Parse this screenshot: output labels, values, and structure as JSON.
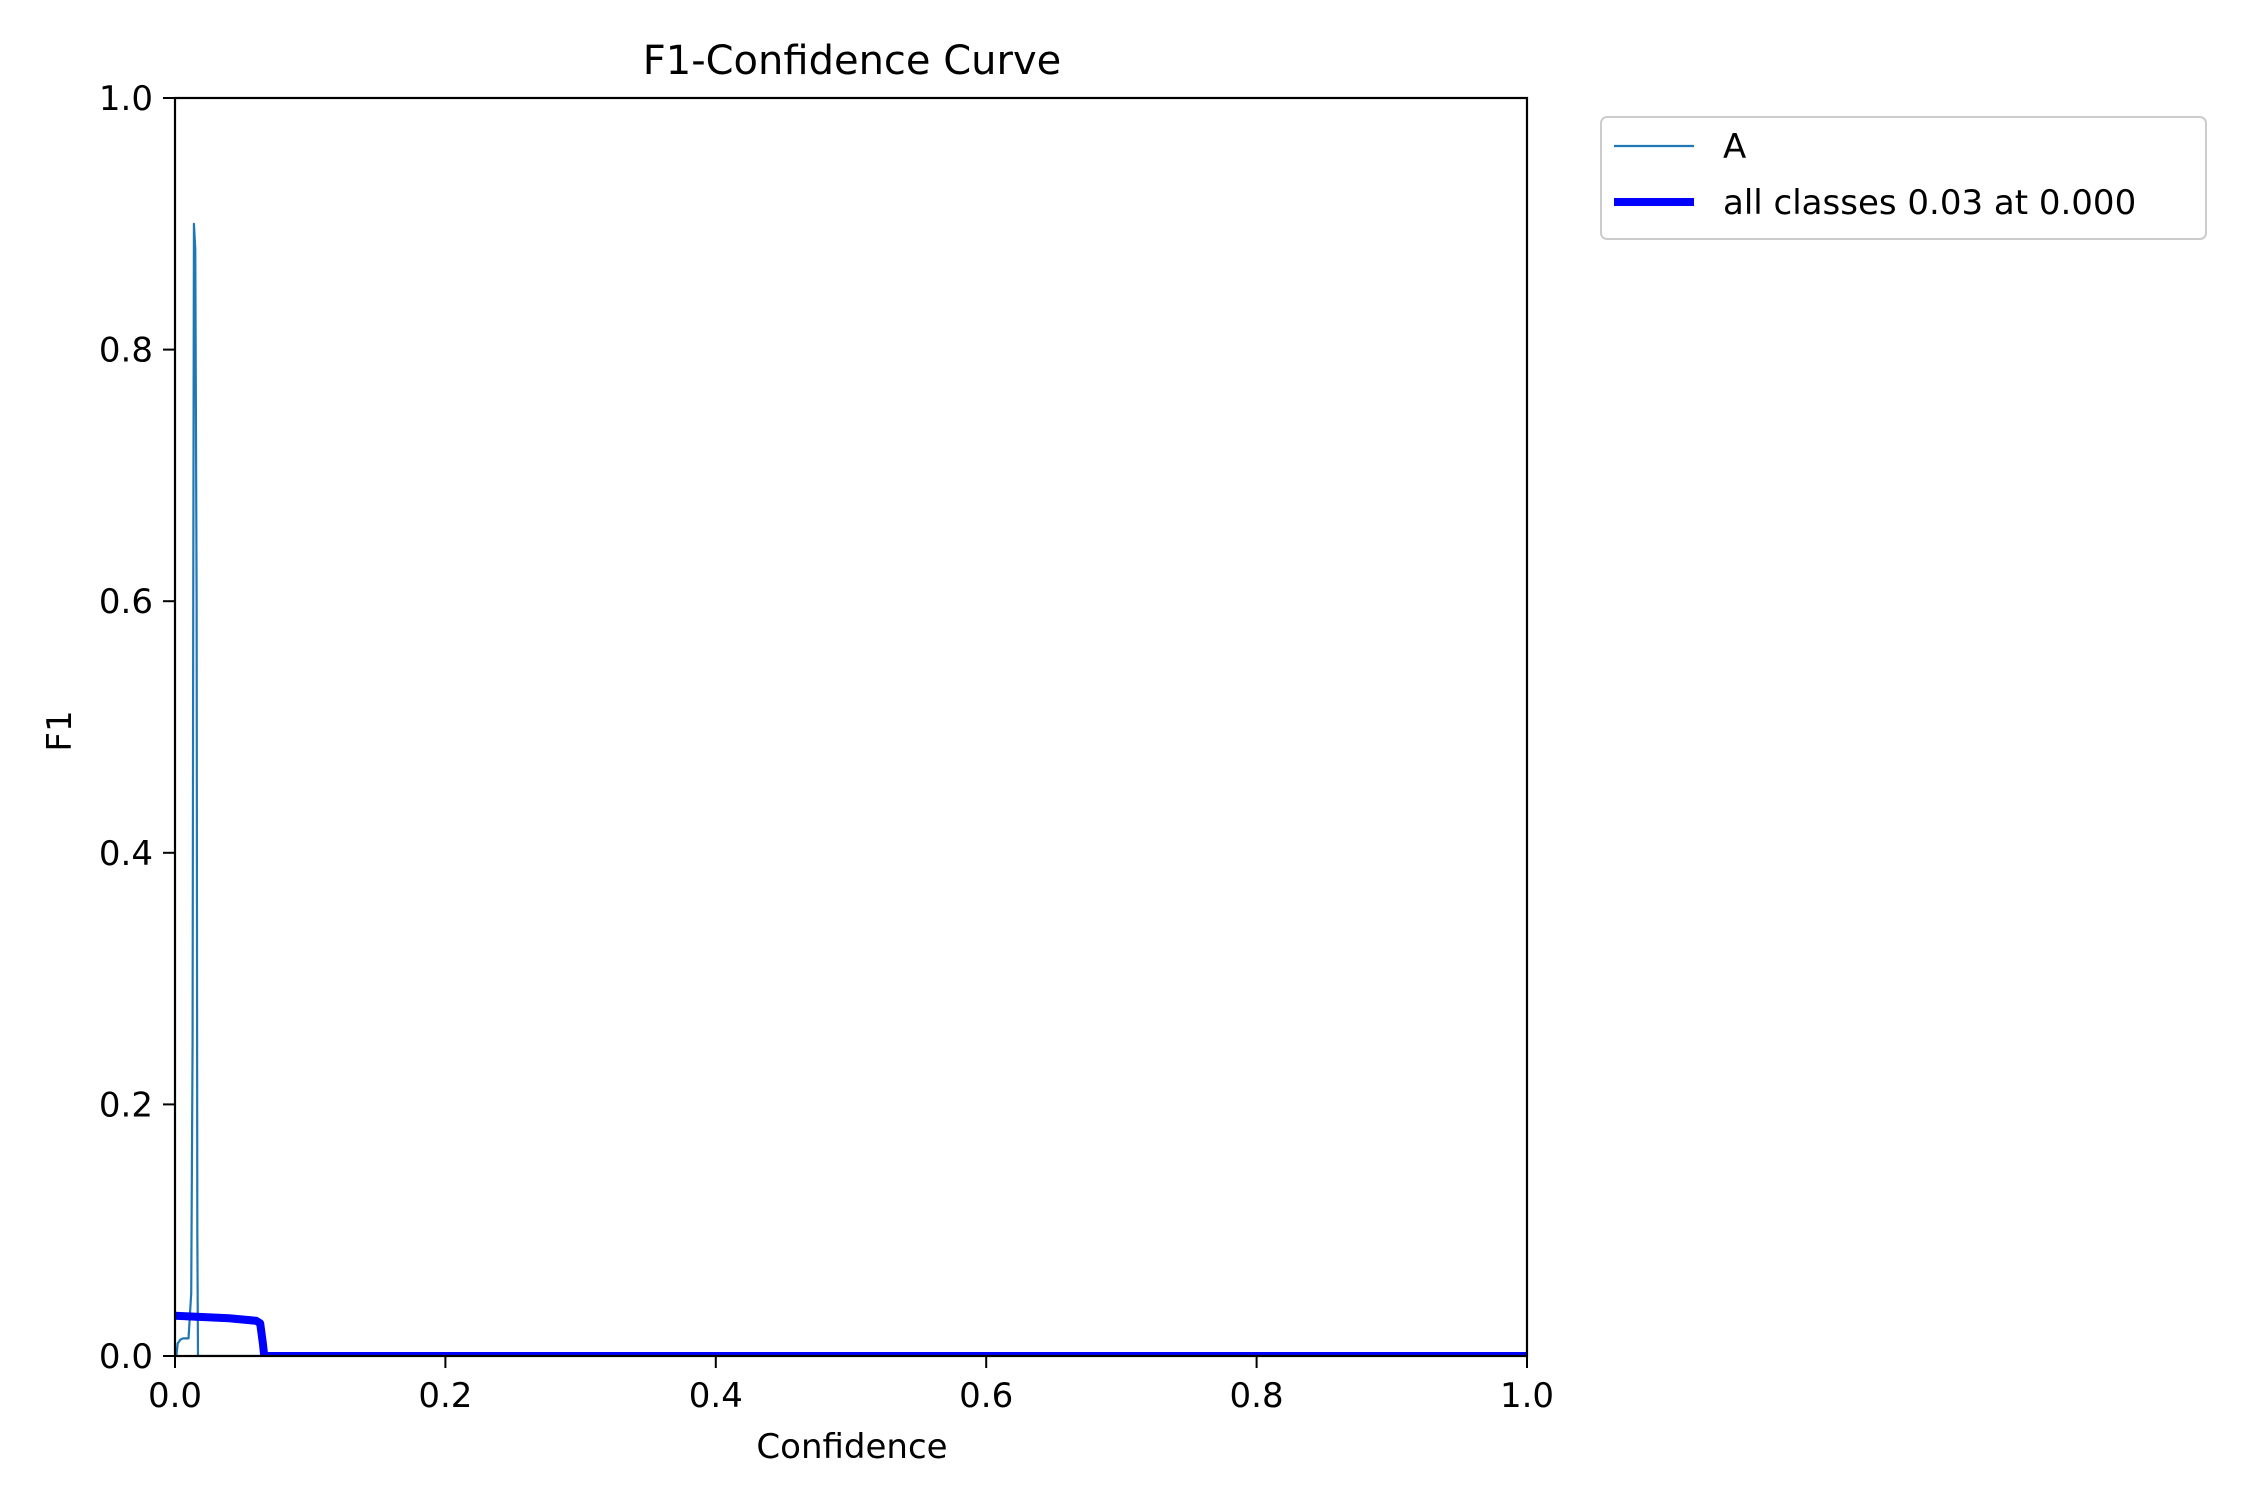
{
  "chart_data": {
    "type": "line",
    "title": "F1-Confidence Curve",
    "xlabel": "Confidence",
    "ylabel": "F1",
    "xlim": [
      0.0,
      1.0
    ],
    "ylim": [
      0.0,
      1.0
    ],
    "xticks": [
      "0.0",
      "0.2",
      "0.4",
      "0.6",
      "0.8",
      "1.0"
    ],
    "yticks": [
      "0.0",
      "0.2",
      "0.4",
      "0.6",
      "0.8",
      "1.0"
    ],
    "grid": false,
    "legend_position": "outside upper right",
    "series": [
      {
        "name": "A",
        "color": "#1f77b4",
        "points": [
          [
            0.0,
            0.0
          ],
          [
            0.001,
            0.0
          ],
          [
            0.002,
            0.01
          ],
          [
            0.004,
            0.013
          ],
          [
            0.006,
            0.014
          ],
          [
            0.01,
            0.014
          ],
          [
            0.012,
            0.05
          ],
          [
            0.013,
            0.25
          ],
          [
            0.0135,
            0.6
          ],
          [
            0.014,
            0.9
          ],
          [
            0.015,
            0.88
          ],
          [
            0.016,
            0.6
          ],
          [
            0.0165,
            0.1
          ],
          [
            0.017,
            0.0
          ],
          [
            1.0,
            0.0
          ]
        ]
      },
      {
        "name": "all classes 0.03 at 0.000",
        "color": "#0000ff",
        "points": [
          [
            0.0,
            0.032
          ],
          [
            0.02,
            0.031
          ],
          [
            0.04,
            0.03
          ],
          [
            0.06,
            0.028
          ],
          [
            0.063,
            0.026
          ],
          [
            0.065,
            0.01
          ],
          [
            0.066,
            0.0
          ],
          [
            1.0,
            0.0
          ]
        ]
      }
    ]
  }
}
